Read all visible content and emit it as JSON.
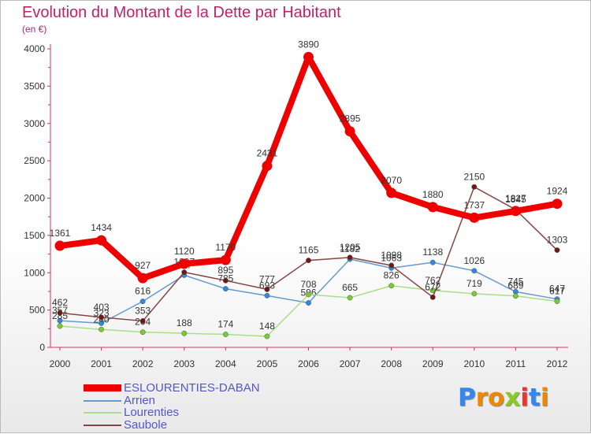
{
  "chart_data": {
    "type": "line",
    "title": "Evolution du Montant de la Dette par Habitant",
    "subtitle": "(en €)",
    "x": [
      "2000",
      "2001",
      "2002",
      "2003",
      "2004",
      "2005",
      "2006",
      "2007",
      "2008",
      "2009",
      "2010",
      "2011",
      "2012"
    ],
    "ylim": [
      0,
      4000
    ],
    "yticks": [
      0,
      500,
      1000,
      1500,
      2000,
      2500,
      3000,
      3500,
      4000
    ],
    "grid": false,
    "legend_position": "bottom-left",
    "series": [
      {
        "name": "Arrien",
        "color": "#6699cc",
        "marker_color": "#3388dd",
        "values": [
          357,
          323,
          616,
          967,
          785,
          693,
          596,
          1182,
          1063,
          1138,
          1026,
          745,
          647
        ],
        "labels": [
          "357",
          "323",
          "616",
          "967",
          "785",
          "693",
          "596",
          "1182",
          "1063",
          "1138",
          "1026",
          "745",
          "647"
        ]
      },
      {
        "name": "Lourenties",
        "color": "#aade88",
        "marker_color": "#77cc33",
        "values": [
          285,
          240,
          204,
          188,
          174,
          148,
          708,
          665,
          826,
          762,
          719,
          689,
          617
        ],
        "labels": [
          "285",
          "240",
          "204",
          "188",
          "174",
          "148",
          "708",
          "665",
          "826",
          "762",
          "719",
          "689",
          "617"
        ]
      },
      {
        "name": "Saubole",
        "color": "#884444",
        "marker_color": "#6b1a1a",
        "values": [
          462,
          403,
          353,
          1007,
          895,
          777,
          1165,
          1205,
          1098,
          672,
          2150,
          1845,
          1303
        ],
        "labels": [
          "462",
          "403",
          "353",
          "1007",
          "895",
          "777",
          "1165",
          "1205",
          "1098",
          "672",
          "2150",
          "1845",
          "1303"
        ]
      },
      {
        "name": "ESLOURENTIES-DABAN",
        "color": "#ee0000",
        "marker_color": "#ee0000",
        "values": [
          1361,
          1434,
          927,
          1120,
          1170,
          2431,
          3890,
          2895,
          2070,
          1880,
          1737,
          1827,
          1924
        ],
        "labels": [
          "1361",
          "1434",
          "927",
          "1120",
          "1170",
          "2431",
          "3890",
          "2895",
          "2070",
          "1880",
          "1737",
          "1827",
          "1924"
        ]
      }
    ]
  },
  "legend": {
    "items": [
      {
        "name": "ESLOURENTIES-DABAN",
        "color": "#ee0000",
        "text_color": "#5555cc"
      },
      {
        "name": "Arrien",
        "color": "#6699cc",
        "text_color": "#5555cc"
      },
      {
        "name": "Lourenties",
        "color": "#aade88",
        "text_color": "#5555cc"
      },
      {
        "name": "Saubole",
        "color": "#884444",
        "text_color": "#5555cc"
      }
    ]
  },
  "logo": {
    "letters": [
      "P",
      "r",
      "o",
      "x",
      "i",
      "t",
      "i"
    ],
    "colors": [
      "#3388ee",
      "#ee8800",
      "#ee8800",
      "#88cc22",
      "#ee3333",
      "#3388ee",
      "#ee8800"
    ]
  }
}
